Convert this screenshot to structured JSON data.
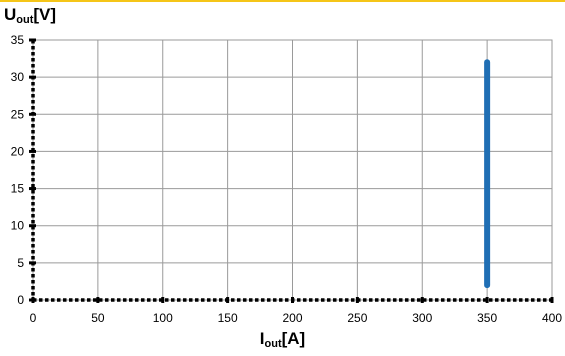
{
  "colors": {
    "accent": "#F5C518",
    "series": "#1F6EB4",
    "grid": "#9A9A9A",
    "axis": "#000000"
  },
  "axis_titles": {
    "y": {
      "symbol": "U",
      "sub": "out",
      "unit": "[V]"
    },
    "x": {
      "symbol": "I",
      "sub": "out",
      "unit": "[A]"
    }
  },
  "chart_data": {
    "type": "line",
    "xlabel": "Iout[A]",
    "ylabel": "Uout[V]",
    "xlim": [
      0,
      400
    ],
    "ylim": [
      0,
      35
    ],
    "xticks": [
      0,
      50,
      100,
      150,
      200,
      250,
      300,
      350,
      400
    ],
    "yticks": [
      0,
      5,
      10,
      15,
      20,
      25,
      30,
      35
    ],
    "grid": true,
    "series": [
      {
        "x": [
          350,
          350
        ],
        "y": [
          2,
          32
        ]
      }
    ]
  }
}
